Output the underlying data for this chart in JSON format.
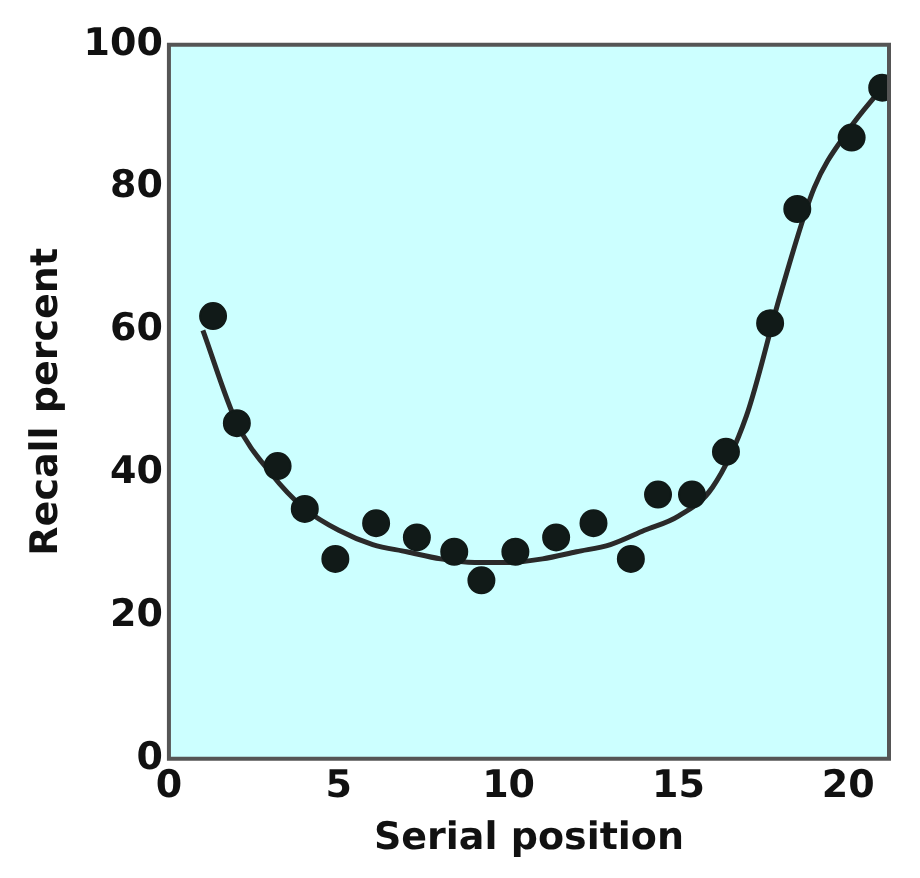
{
  "chart_data": {
    "type": "scatter",
    "xlabel": "Serial position",
    "ylabel": "Recall percent",
    "xlim": [
      0,
      21.2
    ],
    "xticks": [
      0,
      5,
      10,
      15,
      20
    ],
    "ylim": [
      0,
      100
    ],
    "yticks": [
      0,
      20,
      40,
      60,
      80,
      100
    ],
    "grid": false,
    "legend": false,
    "marker": "circle",
    "series": [
      {
        "color": "#111a18",
        "x": [
          1.3,
          2.0,
          3.2,
          4.0,
          4.9,
          6.1,
          7.3,
          8.4,
          9.2,
          10.2,
          11.4,
          12.5,
          13.6,
          14.4,
          15.4,
          16.4,
          17.7,
          18.5,
          20.1,
          21.0
        ],
        "values": [
          62,
          47,
          41,
          35,
          28,
          33,
          31,
          29,
          25,
          29,
          31,
          33,
          28,
          37,
          37,
          43,
          61,
          77,
          87,
          94
        ]
      },
      {
        "type": "line",
        "color": "#2a2a2a",
        "marker": "none",
        "x": [
          1,
          2,
          3,
          4,
          5,
          6,
          7,
          8,
          9,
          10,
          11,
          12,
          13,
          14,
          15,
          16,
          17,
          18,
          19,
          20,
          21
        ],
        "values": [
          60,
          47,
          40,
          35,
          32,
          30,
          29,
          28,
          27.5,
          27.5,
          28,
          29,
          30,
          32,
          34,
          38,
          48,
          65,
          80,
          88,
          94
        ]
      }
    ]
  }
}
